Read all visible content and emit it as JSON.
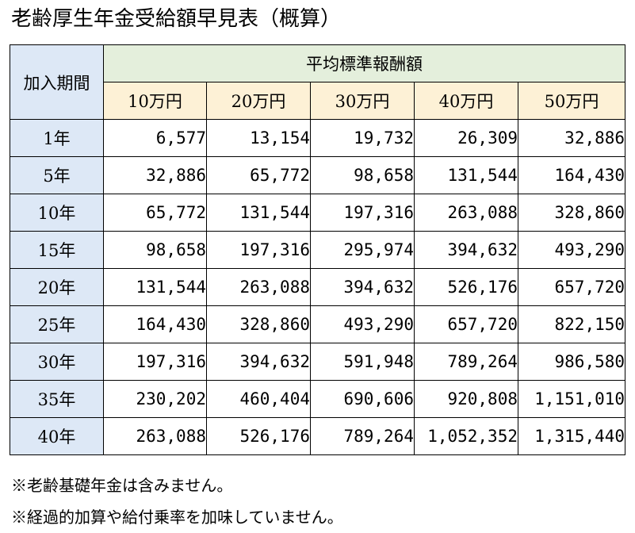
{
  "title": "老齢厚生年金受給額早見表（概算）",
  "table": {
    "period_header": "加入期間",
    "group_header": "平均標準報酬額",
    "columns": [
      "10万円",
      "20万円",
      "30万円",
      "40万円",
      "50万円"
    ],
    "rows": [
      {
        "label": "1年",
        "values": [
          "6,577",
          "13,154",
          "19,732",
          "26,309",
          "32,886"
        ]
      },
      {
        "label": "5年",
        "values": [
          "32,886",
          "65,772",
          "98,658",
          "131,544",
          "164,430"
        ]
      },
      {
        "label": "10年",
        "values": [
          "65,772",
          "131,544",
          "197,316",
          "263,088",
          "328,860"
        ]
      },
      {
        "label": "15年",
        "values": [
          "98,658",
          "197,316",
          "295,974",
          "394,632",
          "493,290"
        ]
      },
      {
        "label": "20年",
        "values": [
          "131,544",
          "263,088",
          "394,632",
          "526,176",
          "657,720"
        ]
      },
      {
        "label": "25年",
        "values": [
          "164,430",
          "328,860",
          "493,290",
          "657,720",
          "822,150"
        ]
      },
      {
        "label": "30年",
        "values": [
          "197,316",
          "394,632",
          "591,948",
          "789,264",
          "986,580"
        ]
      },
      {
        "label": "35年",
        "values": [
          "230,202",
          "460,404",
          "690,606",
          "920,808",
          "1,151,010"
        ]
      },
      {
        "label": "40年",
        "values": [
          "263,088",
          "526,176",
          "789,264",
          "1,052,352",
          "1,315,440"
        ]
      }
    ]
  },
  "notes": [
    "※老齢基礎年金は含みません。",
    "※経過的加算や給付乗率を加味していません。"
  ],
  "colors": {
    "period_bg": "#dde8f6",
    "group_bg": "#e4efdc",
    "column_bg": "#fdf1d6"
  }
}
